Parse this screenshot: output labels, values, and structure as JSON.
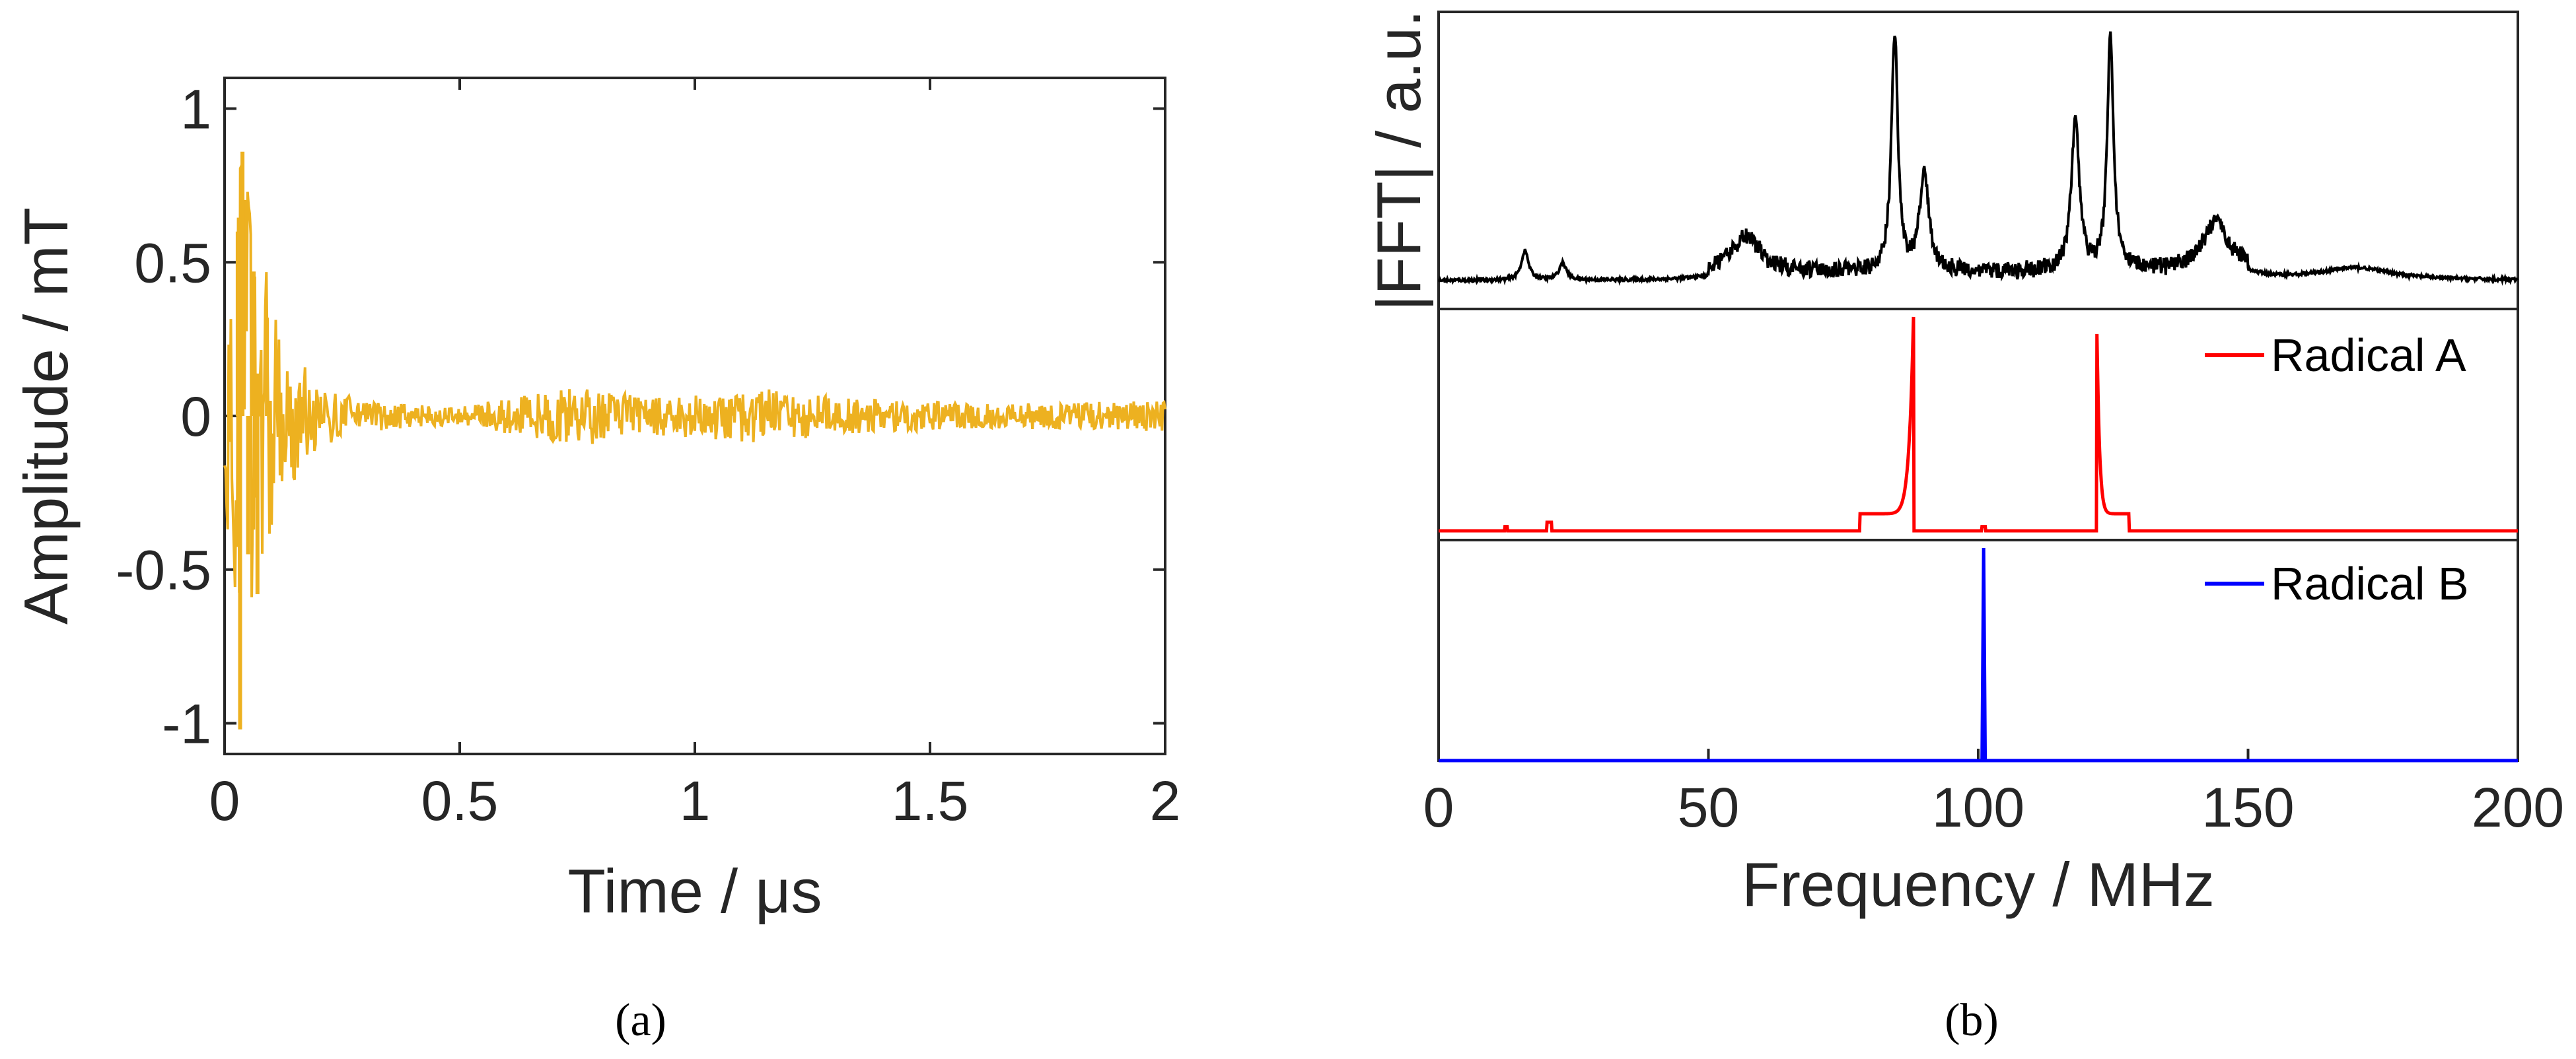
{
  "figure": {
    "caption_a": "(a)",
    "caption_b": "(b)"
  },
  "chart_data": [
    {
      "type": "line",
      "xlabel": "Time / μs",
      "ylabel": "Amplitude / mT",
      "xlim": [
        0,
        2
      ],
      "ylim": [
        -1.1,
        1.1
      ],
      "xticks": [
        0,
        0.5,
        1,
        1.5,
        2
      ],
      "xtick_labels": [
        "0",
        "0.5",
        "1",
        "1.5",
        "2"
      ],
      "yticks": [
        -1,
        -0.5,
        0,
        0.5,
        1
      ],
      "ytick_labels": [
        "-1",
        "-0.5",
        "0",
        "0.5",
        "1"
      ],
      "grid": false,
      "color": "#EDB120",
      "envelope": {
        "t": [
          0.0,
          0.03,
          0.05,
          0.08,
          0.12,
          0.2,
          0.3,
          0.5,
          0.75,
          0.9,
          1.15,
          1.3,
          1.6,
          2.0
        ],
        "amp": [
          0.2,
          1.0,
          0.8,
          0.6,
          0.28,
          0.1,
          0.05,
          0.03,
          0.1,
          0.06,
          0.09,
          0.06,
          0.04,
          0.05
        ]
      }
    },
    {
      "type": "line",
      "xlabel": "Frequency / MHz",
      "ylabel": "|FFT| / a.u.",
      "xlim": [
        0,
        200
      ],
      "xticks": [
        0,
        50,
        100,
        150,
        200
      ],
      "xtick_labels": [
        "0",
        "50",
        "100",
        "150",
        "200"
      ],
      "grid": false,
      "legend": "top-right",
      "panels": [
        {
          "name": "",
          "color": "#000000",
          "ylim": [
            0,
            1
          ],
          "baseline": 0.05,
          "peaks": [
            [
              16,
              0.12,
              0.8
            ],
            [
              23,
              0.07,
              0.8
            ],
            [
              57,
              0.15,
              3
            ],
            [
              84.5,
              0.98,
              0.7
            ],
            [
              90,
              0.4,
              1
            ],
            [
              118,
              0.6,
              0.9
            ],
            [
              124.5,
              0.97,
              0.7
            ],
            [
              144,
              0.2,
              3
            ],
            [
              170,
              0.05,
              8
            ]
          ]
        },
        {
          "name": "Radical A",
          "color": "#FF0000",
          "ylim": [
            0,
            1
          ],
          "peaks": [
            [
              88,
              1.0
            ],
            [
              122,
              0.92
            ]
          ],
          "steps": [
            [
              78,
              88
            ],
            [
              122,
              128
            ]
          ]
        },
        {
          "name": "Radical B",
          "color": "#0000FF",
          "ylim": [
            0,
            1
          ],
          "peaks": [
            [
              101,
              0.97
            ]
          ]
        }
      ]
    }
  ]
}
